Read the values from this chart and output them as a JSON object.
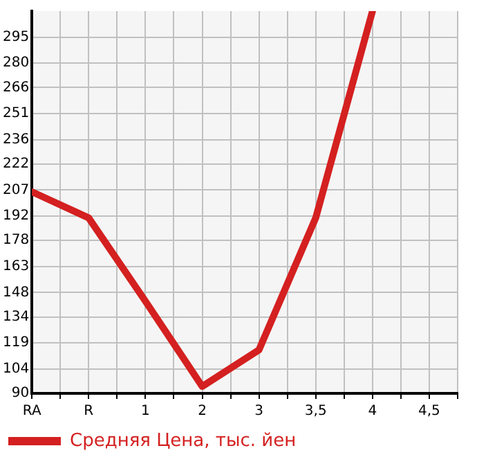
{
  "chart_data": {
    "type": "line",
    "categories": [
      "RA",
      "R",
      "1",
      "2",
      "3",
      "3,5",
      "4",
      "4,5"
    ],
    "series": [
      {
        "name": "Средняя Цена, тыс. йен",
        "color": "#d42020",
        "values": [
          206,
          191,
          143,
          94,
          115,
          191,
          310,
          null
        ]
      }
    ],
    "ylim": [
      90,
      310
    ],
    "yticks": [
      90,
      104,
      119,
      134,
      148,
      163,
      178,
      192,
      207,
      222,
      236,
      251,
      266,
      280,
      295
    ],
    "grid": true,
    "legend": "bottom",
    "marker": "none",
    "line_style": "solid"
  }
}
